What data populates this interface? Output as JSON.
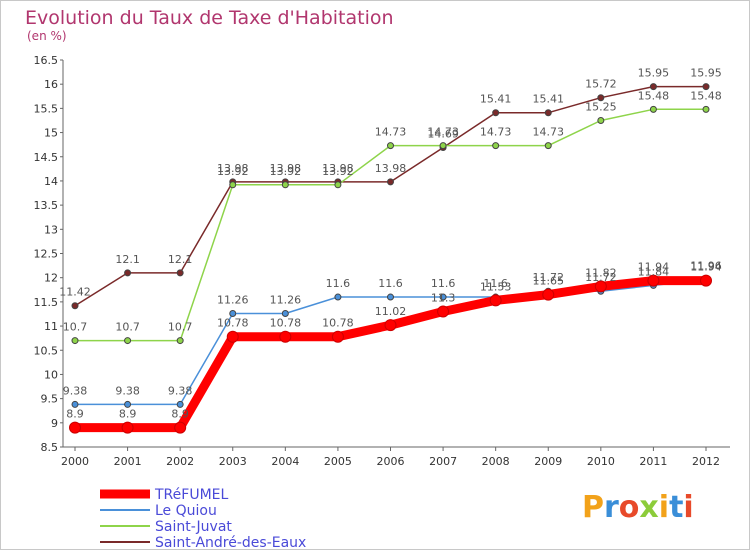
{
  "chart_data": {
    "type": "line",
    "title": "Evolution du Taux de Taxe d'Habitation",
    "subtitle": "(en %)",
    "x": [
      "2000",
      "2001",
      "2002",
      "2003",
      "2004",
      "2005",
      "2006",
      "2007",
      "2008",
      "2009",
      "2010",
      "2011",
      "2012"
    ],
    "y_ticks": [
      "8.5",
      "9",
      "9.5",
      "10",
      "10.5",
      "11",
      "11.5",
      "12",
      "12.5",
      "13",
      "13.5",
      "14",
      "14.5",
      "15",
      "15.5",
      "16",
      "16.5"
    ],
    "ylim": [
      8.5,
      16.5
    ],
    "grid": false,
    "legend_position": "bottom-left",
    "series": [
      {
        "name": "TRéFUMEL",
        "color": "#ff0000",
        "values": [
          8.9,
          8.9,
          8.9,
          10.78,
          10.78,
          10.78,
          11.02,
          11.3,
          11.53,
          11.65,
          11.82,
          11.94,
          11.94
        ]
      },
      {
        "name": "Le Quiou",
        "color": "#4a90d9",
        "values": [
          9.38,
          9.38,
          9.38,
          11.26,
          11.26,
          11.6,
          11.6,
          11.6,
          11.6,
          11.72,
          11.72,
          11.84,
          11.96
        ]
      },
      {
        "name": "Saint-Juvat",
        "color": "#8ed44a",
        "values": [
          10.7,
          10.7,
          10.7,
          13.92,
          13.92,
          13.92,
          14.73,
          14.73,
          14.73,
          14.73,
          15.25,
          15.48,
          15.48
        ]
      },
      {
        "name": "Saint-André-des-Eaux",
        "color": "#7a2a2a",
        "values": [
          11.42,
          12.1,
          12.1,
          13.98,
          13.98,
          13.98,
          13.98,
          14.69,
          15.41,
          15.41,
          15.72,
          15.95,
          15.95
        ]
      }
    ]
  },
  "logo": {
    "text": "Proxiti"
  }
}
